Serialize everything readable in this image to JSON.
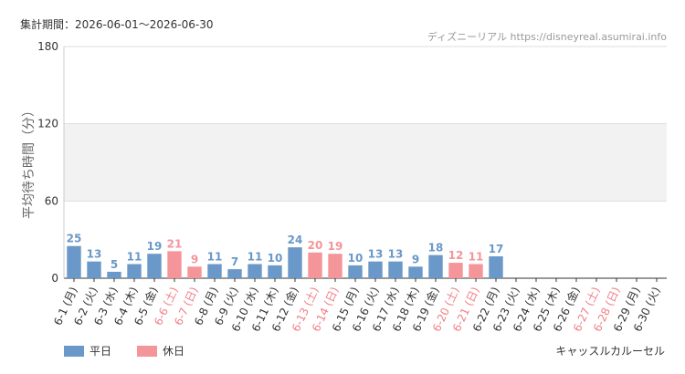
{
  "chart_data": {
    "type": "bar",
    "subtitle": "集計期間：2026-06-01～2026-06-30",
    "source": "ディズニーリアル https://disneyreal.asumirai.info",
    "y_label": "平均待ち時間（分）",
    "caption": "キャッスルカルーセル",
    "categories": [
      "6-1 (月)",
      "6-2 (火)",
      "6-3 (水)",
      "6-4 (木)",
      "6-5 (金)",
      "6-6 (土)",
      "6-7 (日)",
      "6-8 (月)",
      "6-9 (火)",
      "6-10 (水)",
      "6-11 (木)",
      "6-12 (金)",
      "6-13 (土)",
      "6-14 (日)",
      "6-15 (月)",
      "6-16 (火)",
      "6-17 (水)",
      "6-18 (木)",
      "6-19 (金)",
      "6-20 (土)",
      "6-21 (日)",
      "6-22 (月)",
      "6-23 (火)",
      "6-24 (水)",
      "6-25 (木)",
      "6-26 (金)",
      "6-27 (土)",
      "6-28 (日)",
      "6-29 (月)",
      "6-30 (火)"
    ],
    "category_label_colors": [
      "#333",
      "#333",
      "#333",
      "#333",
      "#333",
      "#f07f86",
      "#f07f86",
      "#333",
      "#333",
      "#333",
      "#333",
      "#333",
      "#f07f86",
      "#f07f86",
      "#333",
      "#333",
      "#333",
      "#333",
      "#333",
      "#f07f86",
      "#f07f86",
      "#333",
      "#333",
      "#333",
      "#333",
      "#333",
      "#f07f86",
      "#f07f86",
      "#333",
      "#333"
    ],
    "series": [
      {
        "name": "平日",
        "color": "#6a98c8",
        "values": [
          25,
          13,
          5,
          11,
          19,
          null,
          null,
          11,
          7,
          11,
          10,
          24,
          null,
          null,
          10,
          13,
          13,
          9,
          18,
          null,
          null,
          17,
          null,
          null,
          null,
          null,
          null,
          null,
          null,
          null
        ]
      },
      {
        "name": "休日",
        "color": "#f4959a",
        "values": [
          null,
          null,
          null,
          null,
          null,
          21,
          9,
          null,
          null,
          null,
          null,
          null,
          20,
          19,
          null,
          null,
          null,
          null,
          null,
          12,
          11,
          null,
          null,
          null,
          null,
          null,
          null,
          null,
          null,
          null
        ]
      }
    ],
    "ylim": [
      0,
      180
    ],
    "yticks": [
      0,
      60,
      120,
      180
    ],
    "grid": true
  }
}
